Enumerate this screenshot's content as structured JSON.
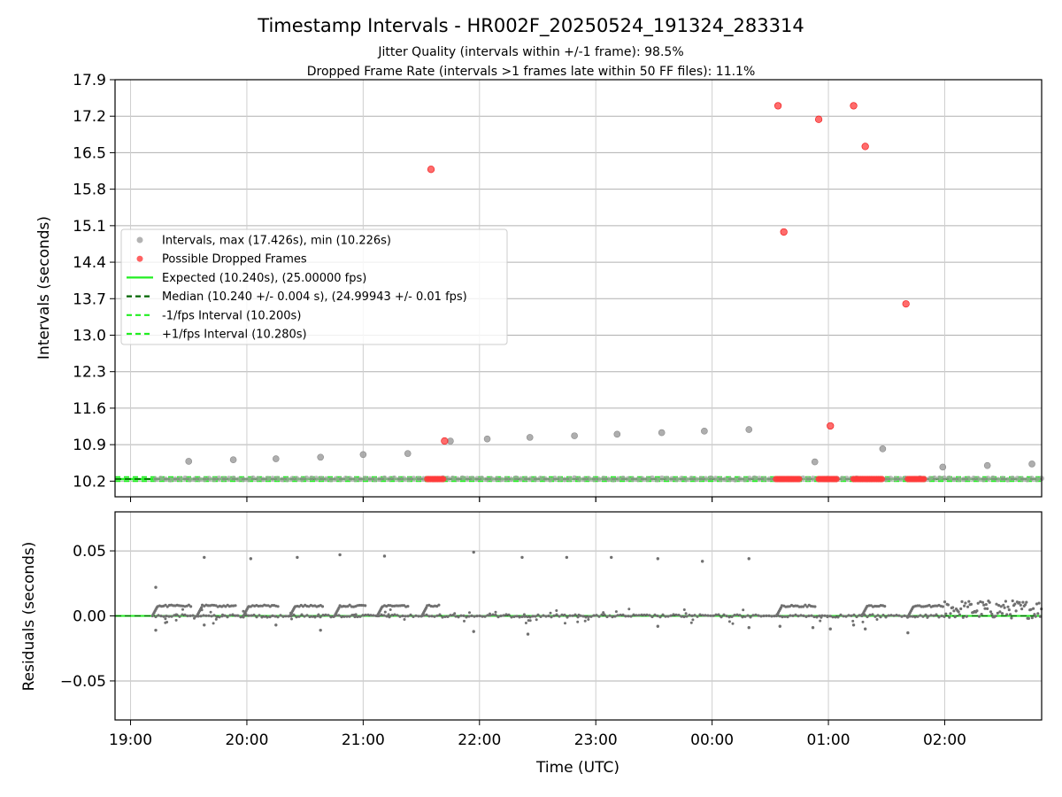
{
  "figure": {
    "title": "Timestamp Intervals - HR002F_20250524_191324_283314",
    "subtitle_1": "Jitter Quality (intervals within +/-1 frame): 98.5%",
    "subtitle_2": "Dropped Frame Rate (intervals >1 frames late within 50 FF files): 11.1%",
    "xlabel": "Time (UTC)"
  },
  "colors": {
    "intervals": "#a0a0a0",
    "dropped": "#ff3b3b",
    "expected": "#22ee22",
    "median": "#006400",
    "bound": "#22ee22",
    "residuals": "#707070",
    "grid": "#b0b0b0"
  },
  "chart_data": [
    {
      "type": "scatter",
      "ylabel": "Intervals (seconds)",
      "xlim": [
        "18:52",
        "02:50"
      ],
      "ylim": [
        9.9,
        17.9
      ],
      "x_ticks": [
        "19:00",
        "20:00",
        "21:00",
        "22:00",
        "23:00",
        "00:00",
        "01:00",
        "02:00"
      ],
      "y_ticks": [
        "10.2",
        "10.9",
        "11.6",
        "12.3",
        "13.0",
        "13.7",
        "14.4",
        "15.1",
        "15.8",
        "16.5",
        "17.2",
        "17.9"
      ],
      "legend_position": "center-left",
      "legend": [
        {
          "label": "Intervals, max (17.426s), min (10.226s)",
          "marker": "dot",
          "color": "#a0a0a0"
        },
        {
          "label": "Possible Dropped Frames",
          "marker": "dot",
          "color": "#ff3b3b"
        },
        {
          "label": "Expected (10.240s), (25.00000 fps)",
          "marker": "solid",
          "color": "#22ee22"
        },
        {
          "label": "Median (10.240 +/- 0.004 s), (24.99943 +/- 0.01 fps)",
          "marker": "dashed",
          "color": "#006400"
        },
        {
          "label": "-1/fps Interval (10.200s)",
          "marker": "dashed",
          "color": "#22ee22"
        },
        {
          "label": "+1/fps Interval (10.280s)",
          "marker": "dashed",
          "color": "#22ee22"
        }
      ],
      "reference_lines": {
        "expected": 10.24,
        "median": 10.24,
        "minus_bound": 10.2,
        "plus_bound": 10.28
      },
      "series": [
        {
          "name": "Intervals, max (17.426s), min (10.226s)",
          "baseline": {
            "x_start": "19:13",
            "x_end": "02:50",
            "y": 10.245
          },
          "x": [
            "19:30",
            "19:53",
            "20:15",
            "20:38",
            "21:00",
            "21:23",
            "21:45",
            "22:04",
            "22:26",
            "22:49",
            "23:11",
            "23:34",
            "23:56",
            "00:19",
            "00:53",
            "01:28",
            "01:59",
            "02:22",
            "02:45"
          ],
          "y": [
            10.58,
            10.61,
            10.63,
            10.66,
            10.71,
            10.73,
            10.97,
            11.01,
            11.04,
            11.07,
            11.1,
            11.13,
            11.16,
            11.19,
            10.57,
            10.82,
            10.47,
            10.5,
            10.53
          ]
        },
        {
          "name": "Possible Dropped Frames",
          "clusters": [
            {
              "x_start": "21:33",
              "x_end": "21:42",
              "y": 10.24
            },
            {
              "x_start": "00:33",
              "x_end": "00:45",
              "y": 10.24
            },
            {
              "x_start": "00:55",
              "x_end": "01:05",
              "y": 10.24
            },
            {
              "x_start": "01:13",
              "x_end": "01:28",
              "y": 10.24
            },
            {
              "x_start": "01:41",
              "x_end": "01:50",
              "y": 10.24
            }
          ],
          "x": [
            "21:35",
            "21:42",
            "00:34",
            "00:37",
            "00:55",
            "01:01",
            "01:13",
            "01:19",
            "01:40"
          ],
          "y": [
            16.18,
            10.97,
            17.4,
            14.98,
            17.14,
            11.26,
            17.4,
            16.62,
            13.6
          ]
        }
      ]
    },
    {
      "type": "scatter",
      "ylabel": "Residuals (seconds)",
      "xlabel": "Time (UTC)",
      "xlim": [
        "18:52",
        "02:50"
      ],
      "ylim": [
        -0.08,
        0.08
      ],
      "x_ticks": [
        "19:00",
        "20:00",
        "21:00",
        "22:00",
        "23:00",
        "00:00",
        "01:00",
        "02:00"
      ],
      "y_ticks": [
        "−0.05",
        "0.00",
        "0.05"
      ],
      "reference_lines": {
        "zero": 0.0
      },
      "series": [
        {
          "name": "",
          "plateau_segments": [
            {
              "x_start": "19:14",
              "x_end": "19:32",
              "y": 0.0077
            },
            {
              "x_start": "19:37",
              "x_end": "19:55",
              "y": 0.0077
            },
            {
              "x_start": "20:01",
              "x_end": "20:17",
              "y": 0.0077
            },
            {
              "x_start": "20:25",
              "x_end": "20:40",
              "y": 0.0077
            },
            {
              "x_start": "20:48",
              "x_end": "21:02",
              "y": 0.0077
            },
            {
              "x_start": "21:10",
              "x_end": "21:24",
              "y": 0.0077
            },
            {
              "x_start": "21:33",
              "x_end": "21:40",
              "y": 0.0077
            },
            {
              "x_start": "00:36",
              "x_end": "00:54",
              "y": 0.0077
            },
            {
              "x_start": "01:20",
              "x_end": "01:30",
              "y": 0.0077
            },
            {
              "x_start": "01:44",
              "x_end": "02:00",
              "y": 0.0077
            }
          ],
          "noise_band": {
            "x_start": "02:00",
            "x_end": "02:50",
            "y_min": -0.002,
            "y_max": 0.012
          },
          "x": [
            "19:13",
            "19:13",
            "19:38",
            "20:02",
            "20:26",
            "20:48",
            "21:11",
            "21:57",
            "22:22",
            "22:45",
            "23:08",
            "23:32",
            "23:55",
            "00:19",
            "19:38",
            "20:15",
            "20:38",
            "21:57",
            "22:25",
            "23:32",
            "00:19",
            "00:35",
            "00:52",
            "01:01",
            "01:13",
            "01:19",
            "01:41"
          ],
          "y": [
            0.022,
            -0.011,
            0.045,
            0.044,
            0.045,
            0.047,
            0.046,
            0.049,
            0.045,
            0.045,
            0.045,
            0.044,
            0.042,
            0.044,
            -0.007,
            -0.007,
            -0.011,
            -0.012,
            -0.014,
            -0.008,
            -0.009,
            -0.008,
            -0.009,
            -0.01,
            -0.007,
            -0.01,
            -0.013
          ]
        }
      ]
    }
  ]
}
